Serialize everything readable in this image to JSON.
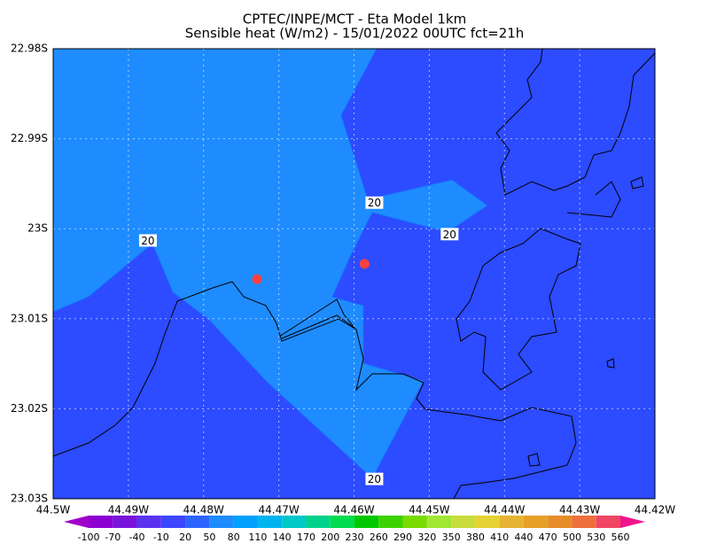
{
  "chart_data": {
    "type": "contour-map",
    "title": "CPTEC/INPE/MCT -  Eta Model 1km",
    "subtitle": "Sensible heat (W/m2) - 15/01/2022 00UTC fct=21h",
    "xlim": [
      -44.5,
      -44.42
    ],
    "ylim": [
      -22.98,
      -23.03
    ],
    "xticks": [
      {
        "value": -44.5,
        "label": "44.5W"
      },
      {
        "value": -44.49,
        "label": "44.49W"
      },
      {
        "value": -44.48,
        "label": "44.48W"
      },
      {
        "value": -44.47,
        "label": "44.47W"
      },
      {
        "value": -44.46,
        "label": "44.46W"
      },
      {
        "value": -44.45,
        "label": "44.45W"
      },
      {
        "value": -44.44,
        "label": "44.44W"
      },
      {
        "value": -44.43,
        "label": "44.43W"
      },
      {
        "value": -44.42,
        "label": "44.42W"
      }
    ],
    "yticks": [
      {
        "value": -22.98,
        "label": "22.98S"
      },
      {
        "value": -22.99,
        "label": "22.99S"
      },
      {
        "value": -23.0,
        "label": "23S"
      },
      {
        "value": -23.01,
        "label": "23.01S"
      },
      {
        "value": -23.02,
        "label": "23.02S"
      },
      {
        "value": -23.03,
        "label": "23.03S"
      }
    ],
    "grid": true,
    "contour_labels": [
      {
        "text": "20",
        "lon": -44.4874,
        "lat": -23.0013
      },
      {
        "text": "20",
        "lon": -44.4573,
        "lat": -22.9971
      },
      {
        "text": "20",
        "lon": -44.4473,
        "lat": -23.0006
      },
      {
        "text": "20",
        "lon": -44.4573,
        "lat": -23.0278
      }
    ],
    "points": {
      "color": "#ff4040",
      "lon": [
        -44.4729,
        -44.4586
      ],
      "lat": [
        -23.0056,
        -23.0039
      ]
    },
    "colorbar": {
      "levels": [
        -100,
        -70,
        -40,
        -10,
        20,
        50,
        80,
        110,
        140,
        170,
        200,
        230,
        260,
        290,
        320,
        350,
        380,
        410,
        440,
        470,
        500,
        530,
        560
      ],
      "colors": [
        "#a000c8",
        "#8c00d2",
        "#7814dc",
        "#5a32f0",
        "#3c46ff",
        "#2d64ff",
        "#1e8cff",
        "#00a0ff",
        "#00b4f0",
        "#00c8c8",
        "#00d28c",
        "#00dc50",
        "#00c800",
        "#3cd200",
        "#78dc00",
        "#a0e632",
        "#c8dc3c",
        "#e6d232",
        "#e6b432",
        "#e6a028",
        "#e68c28",
        "#f06e3c",
        "#f04664",
        "#f0148c"
      ]
    }
  }
}
